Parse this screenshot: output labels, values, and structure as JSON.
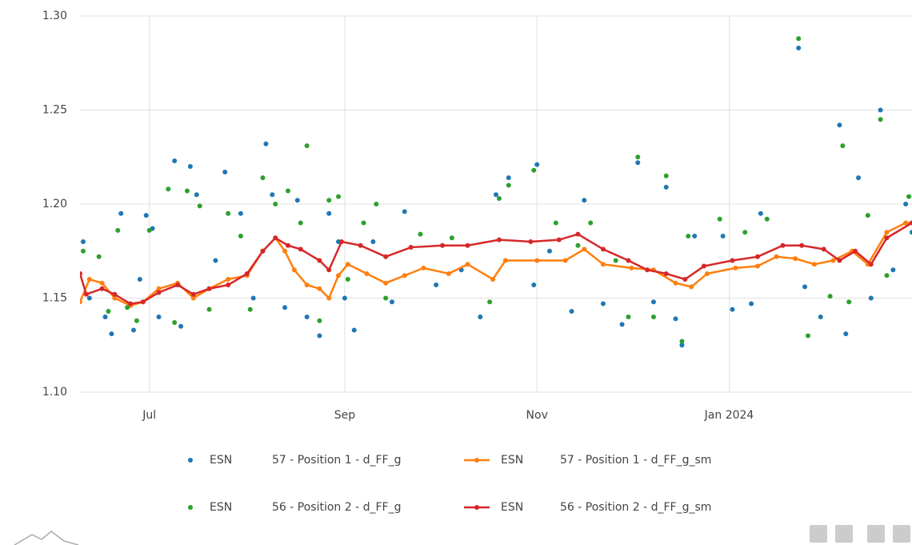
{
  "chart_data": {
    "type": "scatter",
    "xlim": [
      "2023-06-09",
      "2024-02-28"
    ],
    "xticks": [
      {
        "value": "2023-07-01",
        "label": "Jul"
      },
      {
        "value": "2023-09-01",
        "label": "Sep"
      },
      {
        "value": "2023-11-01",
        "label": "Nov"
      },
      {
        "value": "2024-01-01",
        "label": "Jan 2024"
      }
    ],
    "ylim": [
      1.1,
      1.3
    ],
    "yticks": [
      {
        "value": 1.1,
        "label": "1.10"
      },
      1.15,
      {
        "value": 1.2,
        "label": "1.20"
      },
      1.25,
      {
        "value": 1.3,
        "label": "1.30"
      }
    ],
    "grid": true,
    "series": [
      {
        "name": "ESN",
        "label": "57 - Position 1 - d_FF_g",
        "color": "#1f77b4",
        "mode": "markers",
        "x": [
          "2023-06-10",
          "2023-06-12",
          "2023-06-17",
          "2023-06-19",
          "2023-06-22",
          "2023-06-26",
          "2023-06-28",
          "2023-06-30",
          "2023-07-02",
          "2023-07-04",
          "2023-07-09",
          "2023-07-11",
          "2023-07-14",
          "2023-07-16",
          "2023-07-22",
          "2023-07-25",
          "2023-07-30",
          "2023-08-03",
          "2023-08-07",
          "2023-08-09",
          "2023-08-13",
          "2023-08-17",
          "2023-08-20",
          "2023-08-24",
          "2023-08-27",
          "2023-08-30",
          "2023-09-01",
          "2023-09-04",
          "2023-09-10",
          "2023-09-16",
          "2023-09-20",
          "2023-09-30",
          "2023-10-08",
          "2023-10-14",
          "2023-10-19",
          "2023-10-23",
          "2023-10-31",
          "2023-11-01",
          "2023-11-05",
          "2023-11-12",
          "2023-11-16",
          "2023-11-22",
          "2023-11-28",
          "2023-12-03",
          "2023-12-08",
          "2023-12-12",
          "2023-12-15",
          "2023-12-17",
          "2023-12-21",
          "2023-12-30",
          "2024-01-02",
          "2024-01-08",
          "2024-01-11",
          "2024-01-23",
          "2024-01-25",
          "2024-01-30",
          "2024-02-05",
          "2024-02-07",
          "2024-02-11",
          "2024-02-15",
          "2024-02-18",
          "2024-02-22",
          "2024-02-26",
          "2024-02-28"
        ],
        "values": [
          1.18,
          1.15,
          1.14,
          1.131,
          1.195,
          1.133,
          1.16,
          1.194,
          1.187,
          1.14,
          1.223,
          1.135,
          1.22,
          1.205,
          1.17,
          1.217,
          1.195,
          1.15,
          1.232,
          1.205,
          1.145,
          1.202,
          1.14,
          1.13,
          1.195,
          1.18,
          1.15,
          1.133,
          1.18,
          1.148,
          1.196,
          1.157,
          1.165,
          1.14,
          1.205,
          1.214,
          1.157,
          1.221,
          1.175,
          1.143,
          1.202,
          1.147,
          1.136,
          1.222,
          1.148,
          1.209,
          1.139,
          1.125,
          1.183,
          1.183,
          1.144,
          1.147,
          1.195,
          1.283,
          1.156,
          1.14,
          1.242,
          1.131,
          1.214,
          1.15,
          1.25,
          1.165,
          1.2,
          1.185
        ]
      },
      {
        "name": "ESN",
        "label": "57 - Position 1 - d_FF_g_sm",
        "color": "#ff7f0e",
        "mode": "lines+markers",
        "x": [
          "2023-06-09",
          "2023-06-12",
          "2023-06-16",
          "2023-06-20",
          "2023-06-25",
          "2023-06-29",
          "2023-07-04",
          "2023-07-10",
          "2023-07-15",
          "2023-07-20",
          "2023-07-26",
          "2023-08-01",
          "2023-08-06",
          "2023-08-10",
          "2023-08-13",
          "2023-08-16",
          "2023-08-20",
          "2023-08-24",
          "2023-08-27",
          "2023-08-30",
          "2023-09-02",
          "2023-09-08",
          "2023-09-14",
          "2023-09-20",
          "2023-09-26",
          "2023-10-04",
          "2023-10-10",
          "2023-10-18",
          "2023-10-22",
          "2023-11-01",
          "2023-11-10",
          "2023-11-16",
          "2023-11-22",
          "2023-12-01",
          "2023-12-08",
          "2023-12-15",
          "2023-12-20",
          "2023-12-25",
          "2024-01-03",
          "2024-01-10",
          "2024-01-16",
          "2024-01-22",
          "2024-01-28",
          "2024-02-03",
          "2024-02-09",
          "2024-02-14",
          "2024-02-20",
          "2024-02-26",
          "2024-02-28"
        ],
        "values": [
          1.148,
          1.16,
          1.158,
          1.15,
          1.146,
          1.148,
          1.155,
          1.158,
          1.15,
          1.155,
          1.16,
          1.162,
          1.175,
          1.182,
          1.175,
          1.165,
          1.157,
          1.155,
          1.15,
          1.162,
          1.168,
          1.163,
          1.158,
          1.162,
          1.166,
          1.163,
          1.168,
          1.16,
          1.17,
          1.17,
          1.17,
          1.176,
          1.168,
          1.166,
          1.165,
          1.158,
          1.156,
          1.163,
          1.166,
          1.167,
          1.172,
          1.171,
          1.168,
          1.17,
          1.175,
          1.168,
          1.185,
          1.19,
          1.19
        ]
      },
      {
        "name": "ESN",
        "label": "56 - Position 2 - d_FF_g",
        "color": "#2ca02c",
        "mode": "markers",
        "x": [
          "2023-06-10",
          "2023-06-15",
          "2023-06-18",
          "2023-06-21",
          "2023-06-24",
          "2023-06-27",
          "2023-07-01",
          "2023-07-07",
          "2023-07-09",
          "2023-07-13",
          "2023-07-17",
          "2023-07-20",
          "2023-07-26",
          "2023-07-30",
          "2023-08-02",
          "2023-08-06",
          "2023-08-10",
          "2023-08-14",
          "2023-08-18",
          "2023-08-20",
          "2023-08-24",
          "2023-08-27",
          "2023-08-30",
          "2023-09-02",
          "2023-09-07",
          "2023-09-11",
          "2023-09-14",
          "2023-09-25",
          "2023-10-05",
          "2023-10-17",
          "2023-10-20",
          "2023-10-23",
          "2023-10-31",
          "2023-11-07",
          "2023-11-14",
          "2023-11-18",
          "2023-11-26",
          "2023-11-30",
          "2023-12-03",
          "2023-12-08",
          "2023-12-12",
          "2023-12-17",
          "2023-12-19",
          "2023-12-29",
          "2024-01-06",
          "2024-01-13",
          "2024-01-23",
          "2024-01-26",
          "2024-02-02",
          "2024-02-06",
          "2024-02-08",
          "2024-02-14",
          "2024-02-18",
          "2024-02-20",
          "2024-02-27"
        ],
        "values": [
          1.175,
          1.172,
          1.143,
          1.186,
          1.145,
          1.138,
          1.186,
          1.208,
          1.137,
          1.207,
          1.199,
          1.144,
          1.195,
          1.183,
          1.144,
          1.214,
          1.2,
          1.207,
          1.19,
          1.231,
          1.138,
          1.202,
          1.204,
          1.16,
          1.19,
          1.2,
          1.15,
          1.184,
          1.182,
          1.148,
          1.203,
          1.21,
          1.218,
          1.19,
          1.178,
          1.19,
          1.17,
          1.14,
          1.225,
          1.14,
          1.215,
          1.127,
          1.183,
          1.192,
          1.185,
          1.192,
          1.288,
          1.13,
          1.151,
          1.231,
          1.148,
          1.194,
          1.245,
          1.162,
          1.204
        ]
      },
      {
        "name": "ESN",
        "label": "56 - Position 2 - d_FF_g_sm",
        "color": "#d62728",
        "mode": "lines+markers",
        "x": [
          "2023-06-09",
          "2023-06-11",
          "2023-06-16",
          "2023-06-20",
          "2023-06-25",
          "2023-06-29",
          "2023-07-04",
          "2023-07-10",
          "2023-07-15",
          "2023-07-20",
          "2023-07-26",
          "2023-08-01",
          "2023-08-06",
          "2023-08-10",
          "2023-08-14",
          "2023-08-18",
          "2023-08-24",
          "2023-08-27",
          "2023-08-31",
          "2023-09-06",
          "2023-09-14",
          "2023-09-22",
          "2023-10-02",
          "2023-10-10",
          "2023-10-20",
          "2023-10-30",
          "2023-11-08",
          "2023-11-14",
          "2023-11-22",
          "2023-11-30",
          "2023-12-06",
          "2023-12-12",
          "2023-12-18",
          "2023-12-24",
          "2024-01-02",
          "2024-01-10",
          "2024-01-18",
          "2024-01-24",
          "2024-01-31",
          "2024-02-05",
          "2024-02-10",
          "2024-02-15",
          "2024-02-20",
          "2024-02-28"
        ],
        "values": [
          1.163,
          1.152,
          1.155,
          1.152,
          1.147,
          1.148,
          1.153,
          1.157,
          1.152,
          1.155,
          1.157,
          1.163,
          1.175,
          1.182,
          1.178,
          1.176,
          1.17,
          1.165,
          1.18,
          1.178,
          1.172,
          1.177,
          1.178,
          1.178,
          1.181,
          1.18,
          1.181,
          1.184,
          1.176,
          1.17,
          1.165,
          1.163,
          1.16,
          1.167,
          1.17,
          1.172,
          1.178,
          1.178,
          1.176,
          1.17,
          1.175,
          1.168,
          1.182,
          1.19
        ]
      }
    ]
  }
}
